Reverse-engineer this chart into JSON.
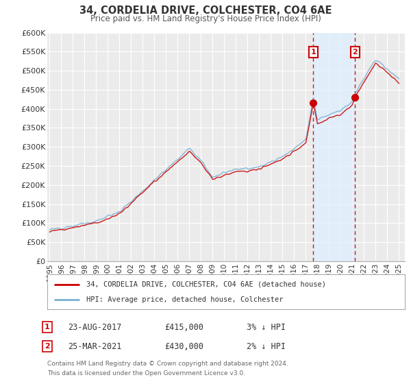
{
  "title": "34, CORDELIA DRIVE, COLCHESTER, CO4 6AE",
  "subtitle": "Price paid vs. HM Land Registry's House Price Index (HPI)",
  "background_color": "#ffffff",
  "plot_bg_color": "#ebebeb",
  "grid_color": "#ffffff",
  "hpi_color": "#7aafd4",
  "price_color": "#cc0000",
  "marker_color": "#cc0000",
  "shade_color": "#ddeeff",
  "ylim": [
    0,
    600000
  ],
  "yticks": [
    0,
    50000,
    100000,
    150000,
    200000,
    250000,
    300000,
    350000,
    400000,
    450000,
    500000,
    550000,
    600000
  ],
  "ytick_labels": [
    "£0",
    "£50K",
    "£100K",
    "£150K",
    "£200K",
    "£250K",
    "£300K",
    "£350K",
    "£400K",
    "£450K",
    "£500K",
    "£550K",
    "£600K"
  ],
  "xlim_start": 1994.8,
  "xlim_end": 2025.5,
  "xtick_years": [
    1995,
    1996,
    1997,
    1998,
    1999,
    2000,
    2001,
    2002,
    2003,
    2004,
    2005,
    2006,
    2007,
    2008,
    2009,
    2010,
    2011,
    2012,
    2013,
    2014,
    2015,
    2016,
    2017,
    2018,
    2019,
    2020,
    2021,
    2022,
    2023,
    2024,
    2025
  ],
  "sale1_x": 2017.644,
  "sale1_y": 415000,
  "sale1_label": "1",
  "sale2_x": 2021.23,
  "sale2_y": 430000,
  "sale2_label": "2",
  "legend_line1": "34, CORDELIA DRIVE, COLCHESTER, CO4 6AE (detached house)",
  "legend_line2": "HPI: Average price, detached house, Colchester",
  "annotation1_date": "23-AUG-2017",
  "annotation1_price": "£415,000",
  "annotation1_pct": "3% ↓ HPI",
  "annotation2_date": "25-MAR-2021",
  "annotation2_price": "£430,000",
  "annotation2_pct": "2% ↓ HPI",
  "footer1": "Contains HM Land Registry data © Crown copyright and database right 2024.",
  "footer2": "This data is licensed under the Open Government Licence v3.0."
}
